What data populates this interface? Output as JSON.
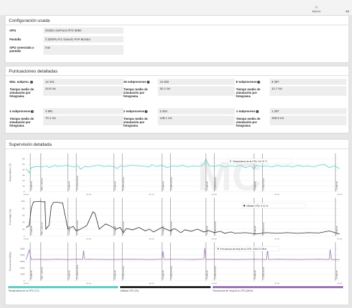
{
  "nav": {
    "home_label": "INICIO",
    "clipped_label": "BE"
  },
  "config": {
    "title": "Configuración usada",
    "rows": [
      {
        "label": "GPU",
        "value": "NVIDIA GeForce RTX 5090"
      },
      {
        "label": "Pantalla",
        "value": "\\\\.\\DISPLAY1 Generic PnP Monitor"
      },
      {
        "label": "GPU conectada a pantalla",
        "value": "true"
      }
    ]
  },
  "scores": {
    "title": "Puntuaciones detalladas",
    "frame_label": "Tiempo medio de simulación por fotograma",
    "items": [
      {
        "label": "Máx. subproc.",
        "score": "14 101",
        "frame_time": "24.8 ms"
      },
      {
        "label": "16 subprocesos",
        "score": "13 392",
        "frame_time": "26.1 ms"
      },
      {
        "label": "8 subprocesos",
        "score": "8 397",
        "frame_time": "41.7 ms"
      },
      {
        "label": "4 subprocesos",
        "score": "4 991",
        "frame_time": "70.1 ms"
      },
      {
        "label": "2 subprocesos",
        "score": "2 534",
        "frame_time": "138.1 ms"
      },
      {
        "label": "1 subproceso",
        "score": "1 297",
        "frame_time": "269.8 ms"
      }
    ]
  },
  "monitoring": {
    "title": "Supervisión detallada",
    "watermark": "MC",
    "markers": [
      "Cargando",
      "Máx. subproc.",
      "Cargando",
      "16 subprocesos",
      "Cargando",
      "8 subprocesos",
      "Cargando",
      "4 subprocesos",
      "Cargando",
      "2 subprocesos",
      "Cargando",
      "1 subproceso",
      "Cargando"
    ],
    "x_ticks": [
      "00:00",
      "00:40",
      "01:20",
      "02:00",
      "02:40",
      "03:20"
    ],
    "colors": {
      "temp": "#4fd6c2",
      "util": "#222222",
      "clock": "#9c6fc4"
    },
    "legend": [
      {
        "label": "Temperatura de la CPU (°C)",
        "color": "#4fd6c2"
      },
      {
        "label": "Utilidad CPU (%)",
        "color": "#222222"
      },
      {
        "label": "Frecuencia de reloj de la CPU (MHz)",
        "color": "#9c6fc4"
      }
    ]
  },
  "chart_data": [
    {
      "type": "line",
      "ylabel": "Temperatura (°C)",
      "y_ticks": [
        0,
        10,
        20,
        30,
        40,
        50,
        60
      ],
      "ylim": [
        0,
        70
      ],
      "series": [
        {
          "name": "Temperatura de la CPU (°C)",
          "x": [
            0,
            3,
            5,
            10,
            15,
            20,
            22,
            28,
            30,
            35,
            40,
            45,
            50,
            52,
            56,
            60,
            65,
            70,
            75,
            80,
            85,
            87,
            90,
            95,
            100,
            110,
            118,
            120,
            125,
            130,
            135,
            140,
            145,
            150,
            155,
            160,
            165,
            170,
            172,
            175,
            180,
            185,
            190,
            195,
            200,
            205,
            210,
            215,
            218,
            220,
            225,
            230,
            235,
            240,
            245,
            250,
            255,
            260,
            265,
            270,
            275,
            280,
            285,
            290,
            295,
            300
          ],
          "values": [
            42,
            34,
            44,
            46,
            45,
            47,
            44,
            48,
            46,
            47,
            48,
            45,
            47,
            41,
            46,
            45,
            47,
            48,
            46,
            47,
            45,
            42,
            47,
            46,
            48,
            47,
            45,
            49,
            46,
            48,
            44,
            47,
            46,
            48,
            45,
            47,
            46,
            49,
            60,
            47,
            46,
            48,
            45,
            47,
            46,
            48,
            44,
            47,
            41,
            48,
            46,
            47,
            45,
            48,
            46,
            47,
            45,
            48,
            46,
            47,
            45,
            48,
            50,
            44,
            47,
            42
          ]
        }
      ],
      "callout": "Temperatura de la CPU: 44.76 °C"
    },
    {
      "type": "line",
      "ylabel": "Porcentaje (%)",
      "y_ticks": [
        0,
        20,
        40,
        60,
        80,
        100
      ],
      "ylim": [
        0,
        110
      ],
      "series": [
        {
          "name": "Utilidad CPU (%)",
          "x": [
            0,
            3,
            5,
            7,
            9,
            14,
            16,
            18,
            19,
            21,
            22,
            24,
            26,
            28,
            30,
            35,
            40,
            45,
            48,
            52,
            58,
            64,
            66,
            70,
            76,
            80,
            86,
            90,
            93,
            96,
            102,
            108,
            114,
            118,
            122,
            130,
            138,
            142,
            148,
            152,
            158,
            164,
            170,
            175,
            180,
            186,
            190,
            196,
            200,
            210,
            220,
            230,
            240,
            250,
            260,
            270,
            280,
            290,
            300
          ],
          "values": [
            25,
            30,
            80,
            98,
            99,
            100,
            98,
            99,
            20,
            28,
            30,
            85,
            96,
            97,
            97,
            95,
            20,
            28,
            15,
            20,
            30,
            70,
            65,
            20,
            35,
            30,
            20,
            25,
            10,
            22,
            18,
            25,
            15,
            20,
            12,
            25,
            15,
            22,
            10,
            18,
            14,
            20,
            12,
            16,
            10,
            14,
            8,
            12,
            8,
            10,
            6,
            10,
            8,
            10,
            8,
            10,
            9,
            15,
            6
          ]
        }
      ],
      "callout": "Utilidad CPU: 9.41 %"
    },
    {
      "type": "line",
      "ylabel": "Frecuencia (MHz)",
      "y_ticks": [
        0,
        1000,
        2000,
        3000,
        4000,
        5000
      ],
      "ylim": [
        0,
        6000
      ],
      "series": [
        {
          "name": "Frecuencia de reloj de la CPU (MHz)",
          "x": [
            0,
            3,
            5,
            10,
            20,
            30,
            40,
            50,
            54,
            55,
            56,
            60,
            80,
            100,
            120,
            130,
            131,
            132,
            140,
            160,
            170,
            171,
            172,
            180,
            200,
            220,
            230,
            231,
            232,
            240,
            260,
            280,
            290,
            291,
            292,
            300
          ],
          "values": [
            3300,
            4800,
            3300,
            3350,
            3300,
            3350,
            3300,
            3350,
            3300,
            4700,
            3300,
            3350,
            3300,
            3350,
            3300,
            3350,
            4600,
            3300,
            3350,
            3300,
            3350,
            5100,
            3300,
            3350,
            3300,
            3350,
            3300,
            5200,
            3300,
            3350,
            3300,
            3350,
            3300,
            4900,
            3300,
            3300
          ]
        }
      ],
      "callout": "Frecuencia de reloj de la CPU: 3300.27 MHz"
    }
  ]
}
